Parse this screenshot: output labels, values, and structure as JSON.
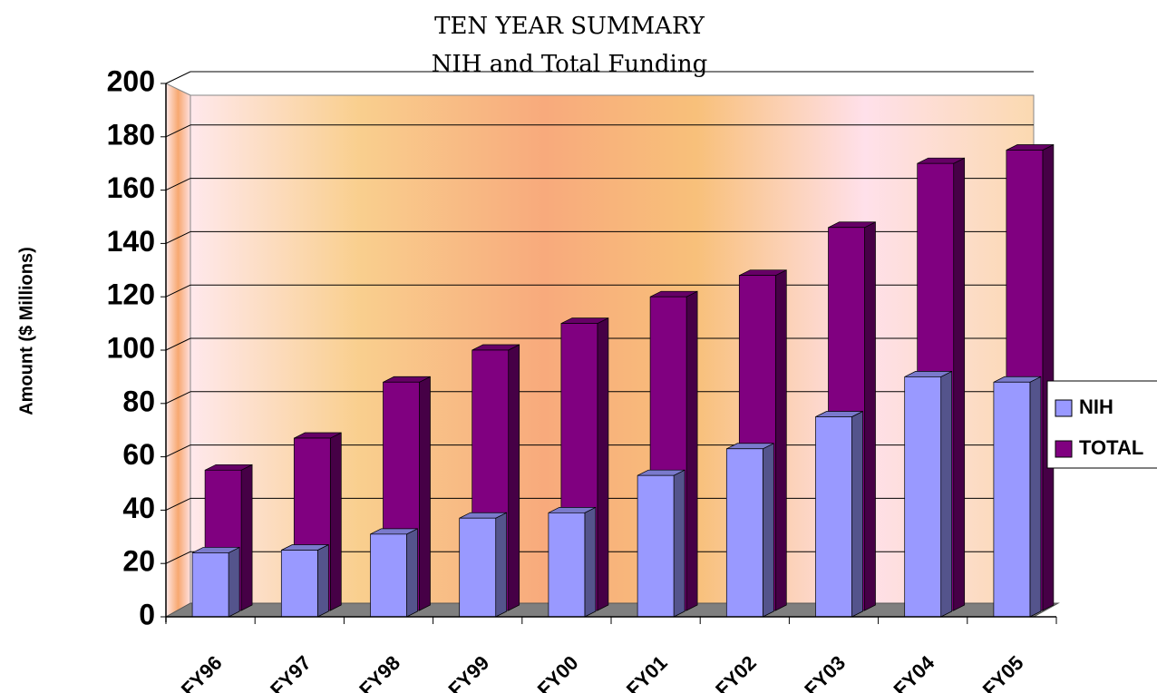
{
  "chart_data": {
    "type": "bar3d",
    "title": "TEN YEAR SUMMARY",
    "subtitle": "NIH and Total Funding",
    "y_label": "Amount ($ Millions)",
    "categories": [
      "FY96",
      "FY97",
      "FY98",
      "FY99",
      "FY00",
      "FY01",
      "FY02",
      "FY03",
      "FY04",
      "FY05"
    ],
    "series": [
      {
        "name": "NIH",
        "color": "#9999ff",
        "values": [
          24,
          25,
          31,
          37,
          39,
          53,
          63,
          75,
          90,
          88
        ]
      },
      {
        "name": "TOTAL",
        "color": "#800080",
        "values": [
          55,
          67,
          88,
          100,
          110,
          120,
          128,
          146,
          170,
          175
        ]
      }
    ],
    "ylim": [
      0,
      200
    ],
    "yticks": [
      0,
      20,
      40,
      60,
      80,
      100,
      120,
      140,
      160,
      180,
      200
    ],
    "grid": true,
    "legend": "right"
  }
}
